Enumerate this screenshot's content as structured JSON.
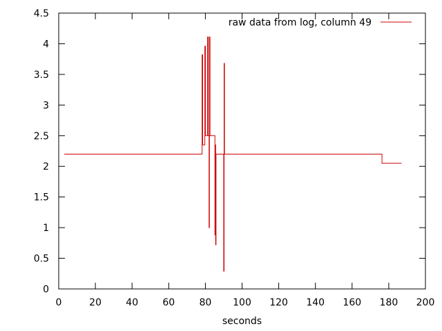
{
  "chart_data": {
    "type": "line",
    "title": "",
    "xlabel": "seconds",
    "ylabel": "",
    "xlim": [
      0,
      200
    ],
    "ylim": [
      0,
      4.5
    ],
    "x_ticks": [
      "0",
      "20",
      "40",
      "60",
      "80",
      "100",
      "120",
      "140",
      "160",
      "180",
      "200"
    ],
    "y_ticks": [
      "0",
      "0.5",
      "1",
      "1.5",
      "2",
      "2.5",
      "3",
      "3.5",
      "4",
      "4.5"
    ],
    "grid": false,
    "legend_position": "top-right",
    "series": [
      {
        "name": "raw data from log, column 49",
        "color": "#cc0000",
        "step": true,
        "points": [
          [
            3,
            2.2
          ],
          [
            78,
            2.2
          ],
          [
            78.2,
            3.82
          ],
          [
            78.5,
            2.35
          ],
          [
            79.5,
            2.35
          ],
          [
            79.7,
            3.96
          ],
          [
            80,
            2.5
          ],
          [
            81,
            2.5
          ],
          [
            81.2,
            4.11
          ],
          [
            81.5,
            2.5
          ],
          [
            81.8,
            2.5
          ],
          [
            82,
            1.0
          ],
          [
            82.2,
            4.11
          ],
          [
            82.5,
            2.5
          ],
          [
            85,
            2.5
          ],
          [
            85.2,
            0.88
          ],
          [
            85.4,
            2.35
          ],
          [
            85.6,
            0.72
          ],
          [
            85.8,
            2.2
          ],
          [
            89.8,
            2.2
          ],
          [
            90,
            0.29
          ],
          [
            90.2,
            3.68
          ],
          [
            90.4,
            2.2
          ],
          [
            176,
            2.2
          ],
          [
            176.3,
            2.05
          ],
          [
            187,
            2.05
          ]
        ]
      }
    ]
  }
}
